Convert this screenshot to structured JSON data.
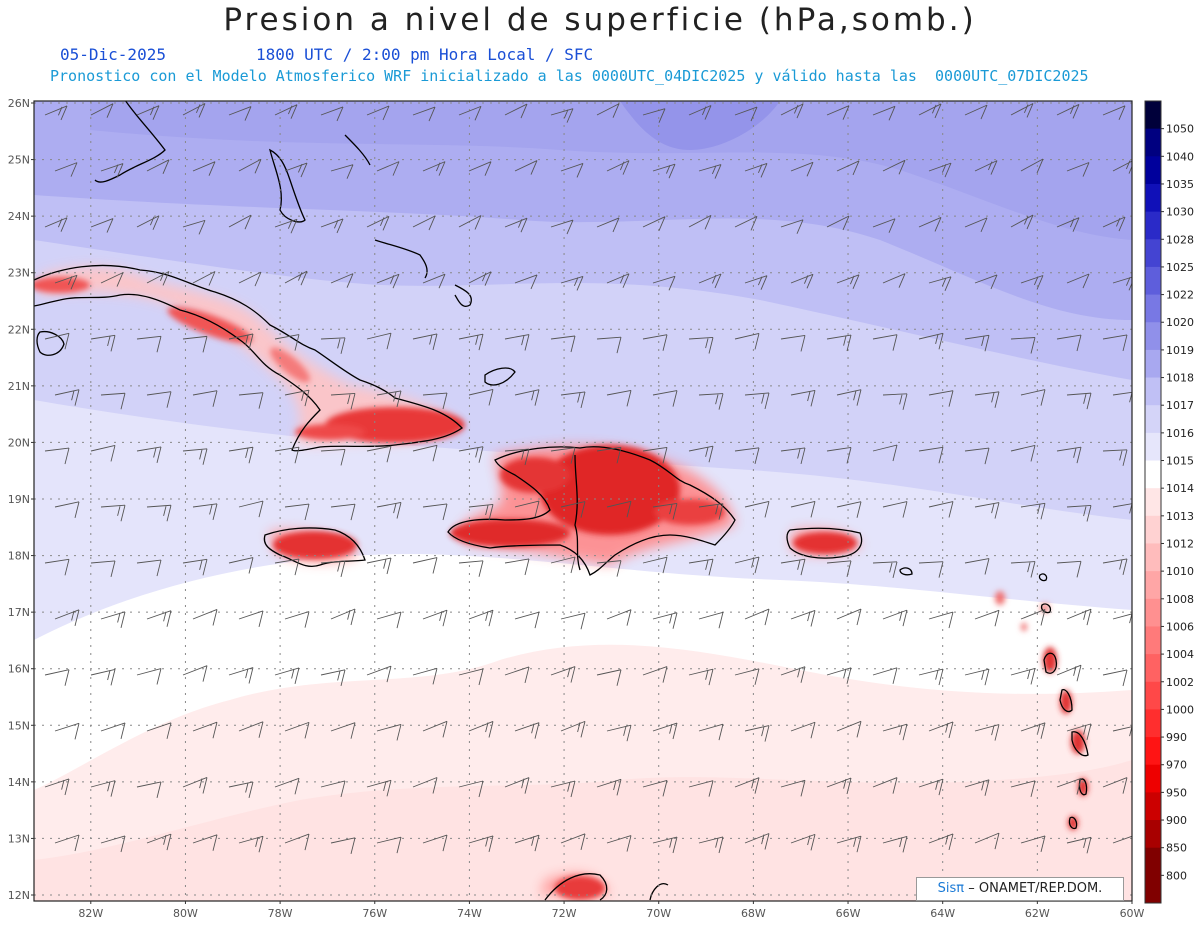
{
  "header": {
    "title": "Presion a nivel de superficie (hPa,somb.)",
    "date": "05-Dic-2025",
    "time": "1800 UTC / 2:00 pm Hora Local / SFC",
    "model": "Pronostico con el Modelo Atmosferico WRF inicializado a las 0000UTC_04DIC2025 y válido hasta las  0000UTC_07DIC2025"
  },
  "axes": {
    "lat_labels": [
      "26N",
      "25N",
      "24N",
      "23N",
      "22N",
      "21N",
      "20N",
      "19N",
      "18N",
      "17N",
      "16N",
      "15N",
      "14N",
      "13N",
      "12N"
    ],
    "lon_labels": [
      "82W",
      "80W",
      "78W",
      "76W",
      "74W",
      "72W",
      "70W",
      "68W",
      "66W",
      "64W",
      "62W",
      "60W"
    ],
    "lat_range": [
      12,
      26
    ],
    "lon_range": [
      -83.2,
      -60
    ]
  },
  "colorbar": {
    "levels": [
      "1050",
      "1040",
      "1035",
      "1030",
      "1028",
      "1025",
      "1022",
      "1020",
      "1019",
      "1018",
      "1017",
      "1016",
      "1015",
      "1014",
      "1013",
      "1012",
      "1010",
      "1008",
      "1006",
      "1004",
      "1002",
      "1000",
      "990",
      "970",
      "950",
      "900",
      "850",
      "800"
    ],
    "colors": [
      "#00003a",
      "#000080",
      "#00009c",
      "#1010b8",
      "#2a2ac8",
      "#4444d2",
      "#5e5edc",
      "#7878e4",
      "#9090ea",
      "#a8a8f0",
      "#c0c0f5",
      "#d4d4f8",
      "#e6e6fb",
      "#ffffff",
      "#ffe6e6",
      "#ffd2d2",
      "#ffbcbc",
      "#ffa6a6",
      "#ff9090",
      "#ff7a7a",
      "#ff6262",
      "#ff4848",
      "#ff2e2e",
      "#ff1414",
      "#ee0000",
      "#cc0000",
      "#a80000",
      "#800000"
    ]
  },
  "credit": {
    "brand": "Sisπ",
    "org": "– ONAMET/REP.DOM."
  }
}
